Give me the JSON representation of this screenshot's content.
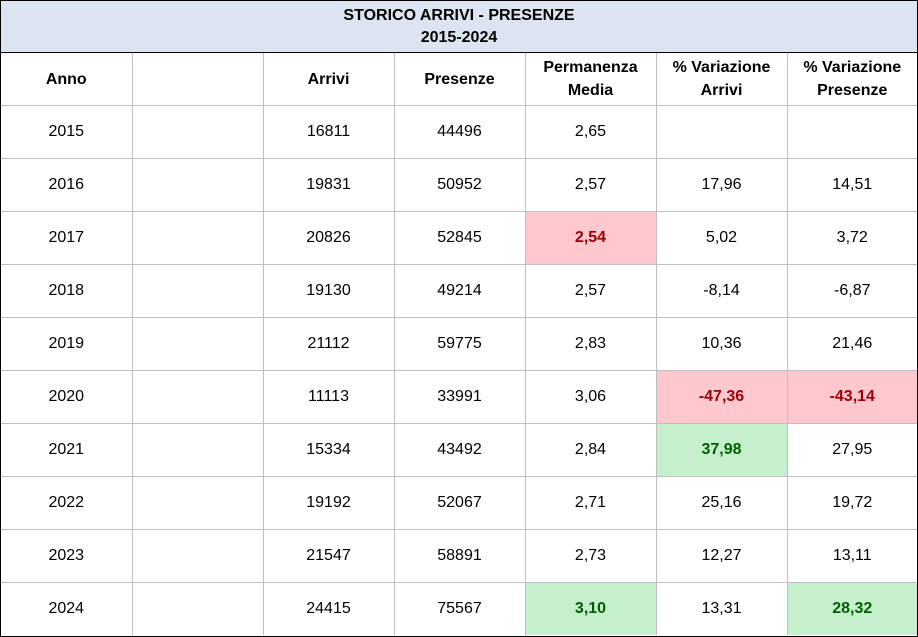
{
  "title": {
    "line1": "STORICO ARRIVI - PRESENZE",
    "line2": "2015-2024"
  },
  "columns": [
    {
      "label": "Anno",
      "key": "anno"
    },
    {
      "label": "",
      "key": "blank"
    },
    {
      "label": "Arrivi",
      "key": "arrivi"
    },
    {
      "label": "Presenze",
      "key": "presenze"
    },
    {
      "label": "Permanenza\nMedia",
      "key": "permanenza"
    },
    {
      "label": "% Variazione\nArrivi",
      "key": "var_arrivi"
    },
    {
      "label": "% Variazione\nPresenze",
      "key": "var_presenze"
    }
  ],
  "rows": [
    {
      "anno": "2015",
      "blank": "",
      "arrivi": "16811",
      "presenze": "44496",
      "permanenza": "2,65",
      "var_arrivi": "",
      "var_presenze": "",
      "hl": {}
    },
    {
      "anno": "2016",
      "blank": "",
      "arrivi": "19831",
      "presenze": "50952",
      "permanenza": "2,57",
      "var_arrivi": "17,96",
      "var_presenze": "14,51",
      "hl": {}
    },
    {
      "anno": "2017",
      "blank": "",
      "arrivi": "20826",
      "presenze": "52845",
      "permanenza": "2,54",
      "var_arrivi": "5,02",
      "var_presenze": "3,72",
      "hl": {
        "permanenza": "red"
      }
    },
    {
      "anno": "2018",
      "blank": "",
      "arrivi": "19130",
      "presenze": "49214",
      "permanenza": "2,57",
      "var_arrivi": "-8,14",
      "var_presenze": "-6,87",
      "hl": {}
    },
    {
      "anno": "2019",
      "blank": "",
      "arrivi": "21112",
      "presenze": "59775",
      "permanenza": "2,83",
      "var_arrivi": "10,36",
      "var_presenze": "21,46",
      "hl": {}
    },
    {
      "anno": "2020",
      "blank": "",
      "arrivi": "11113",
      "presenze": "33991",
      "permanenza": "3,06",
      "var_arrivi": "-47,36",
      "var_presenze": "-43,14",
      "hl": {
        "var_arrivi": "red",
        "var_presenze": "red"
      }
    },
    {
      "anno": "2021",
      "blank": "",
      "arrivi": "15334",
      "presenze": "43492",
      "permanenza": "2,84",
      "var_arrivi": "37,98",
      "var_presenze": "27,95",
      "hl": {
        "var_arrivi": "green"
      }
    },
    {
      "anno": "2022",
      "blank": "",
      "arrivi": "19192",
      "presenze": "52067",
      "permanenza": "2,71",
      "var_arrivi": "25,16",
      "var_presenze": "19,72",
      "hl": {}
    },
    {
      "anno": "2023",
      "blank": "",
      "arrivi": "21547",
      "presenze": "58891",
      "permanenza": "2,73",
      "var_arrivi": "12,27",
      "var_presenze": "13,11",
      "hl": {}
    },
    {
      "anno": "2024",
      "blank": "",
      "arrivi": "24415",
      "presenze": "75567",
      "permanenza": "3,10",
      "var_arrivi": "13,31",
      "var_presenze": "28,32",
      "hl": {
        "permanenza": "green",
        "var_presenze": "green"
      }
    }
  ],
  "colors": {
    "title_band": "#dbe4f0",
    "highlight_red_fill": "#ffc7ce",
    "highlight_red_text": "#9c0006",
    "highlight_green_fill": "#c6efce",
    "highlight_green_text": "#006100",
    "gridline": "#bfbfbf"
  }
}
